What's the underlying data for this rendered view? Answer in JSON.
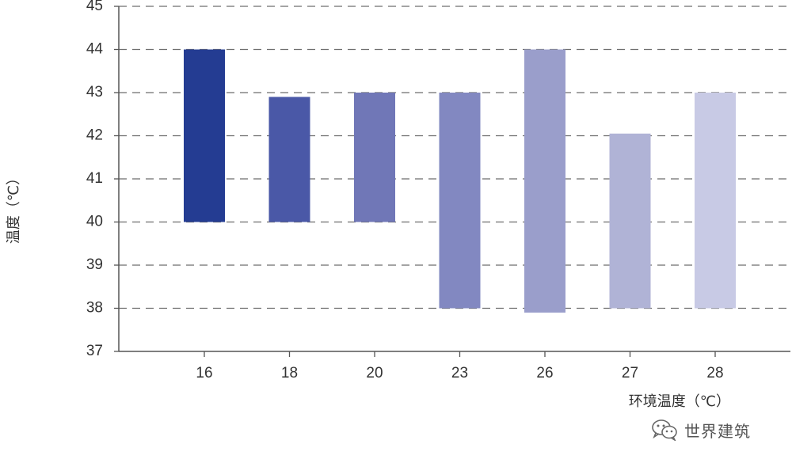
{
  "chart_data": {
    "type": "bar",
    "subtype": "floating-range",
    "categories": [
      "16",
      "18",
      "20",
      "23",
      "26",
      "27",
      "28"
    ],
    "series": [
      {
        "low": [
          40,
          40,
          40,
          38,
          37.9,
          38,
          38
        ],
        "high": [
          44,
          42.9,
          43,
          43,
          44,
          42.05,
          43
        ]
      }
    ],
    "colors": [
      "#243c92",
      "#4a58a7",
      "#7077b7",
      "#8288c1",
      "#9a9ecb",
      "#b0b3d6",
      "#c8cae5"
    ],
    "title": "",
    "xlabel": "环境温度（℃）",
    "ylabel": "温度（℃）",
    "ylim": [
      37,
      45
    ],
    "yticks": [
      37,
      38,
      39,
      40,
      41,
      42,
      43,
      44,
      45
    ],
    "grid": "horizontal-dashed"
  },
  "watermark": {
    "text": "世界建筑",
    "icon": "wechat-icon"
  }
}
